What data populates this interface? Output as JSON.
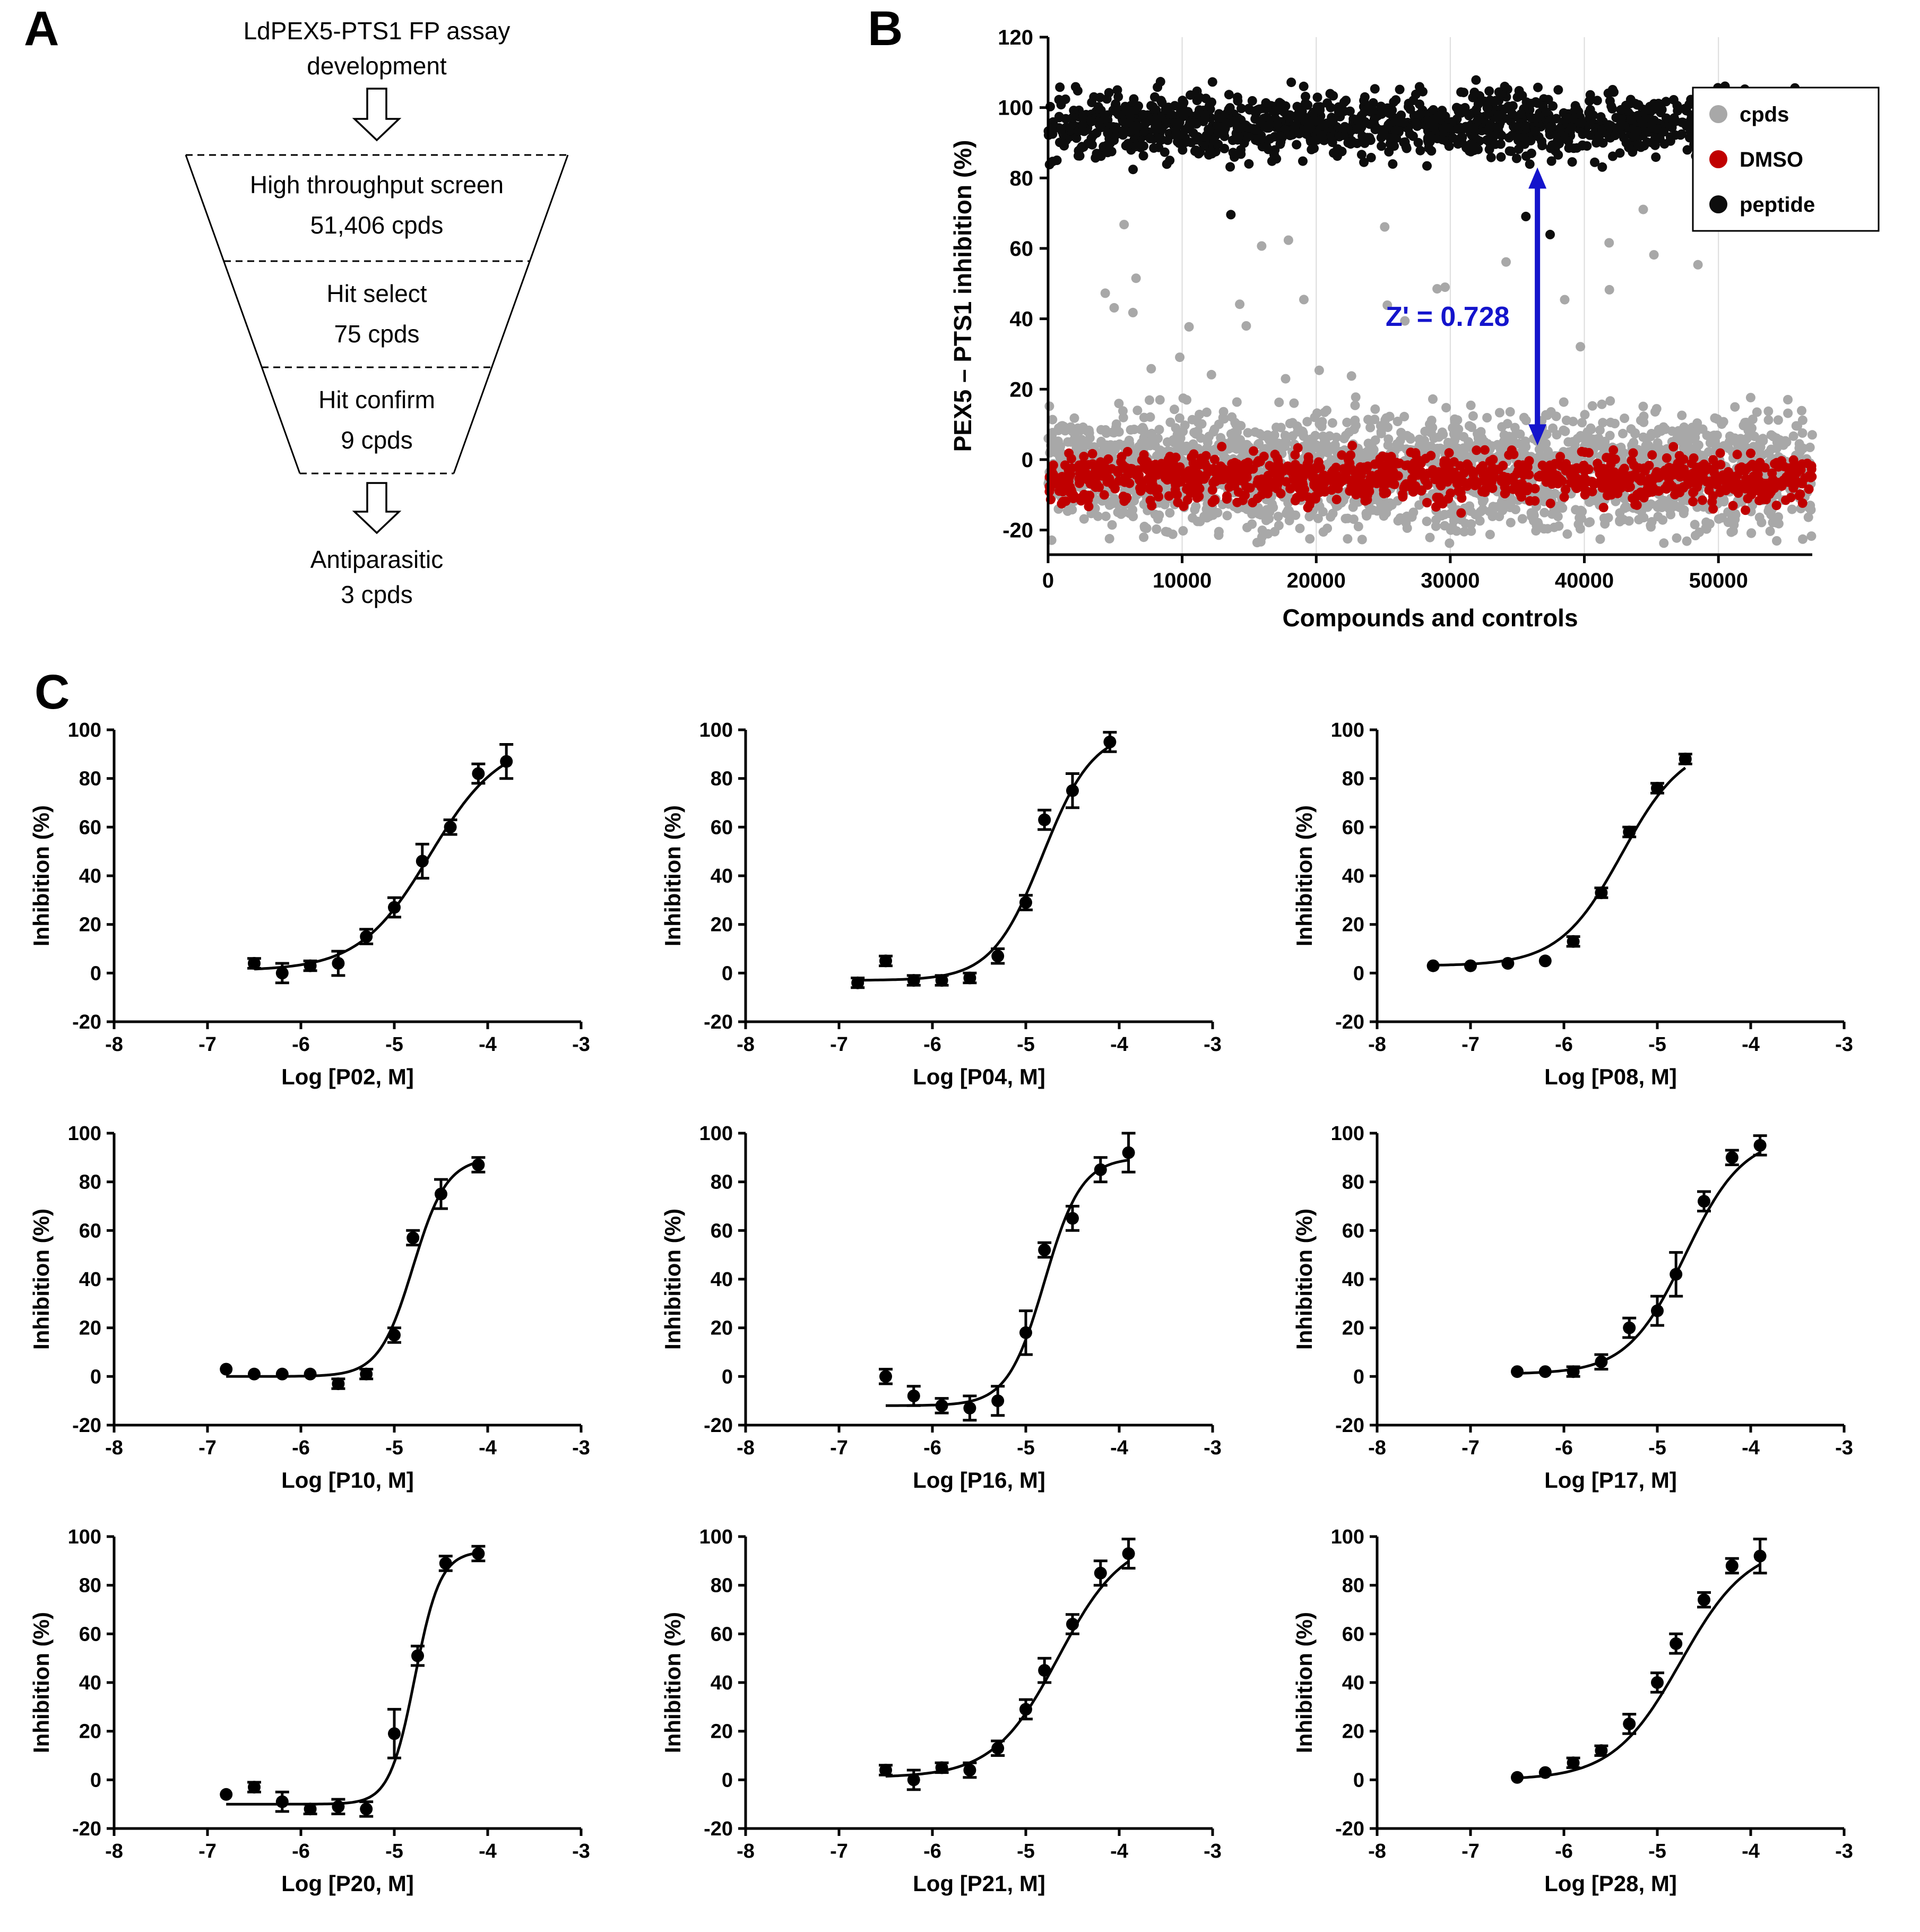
{
  "panelA": {
    "label": "A",
    "title_line1": "LdPEX5-PTS1 FP assay",
    "title_line2": "development",
    "funnel_stages": [
      {
        "line1": "High throughput screen",
        "line2": "51,406 cpds"
      },
      {
        "line1": "Hit select",
        "line2": "75 cpds"
      },
      {
        "line1": "Hit confirm",
        "line2": "9 cpds"
      }
    ],
    "outcome_line1": "Antiparasitic",
    "outcome_line2": "3 cpds"
  },
  "panelB": {
    "label": "B"
  },
  "panelC": {
    "label": "C"
  },
  "chart_data": [
    {
      "type": "scatter",
      "title": "",
      "xlabel": "Compounds and controls",
      "ylabel": "PEX5 – PTS1 inhibition (%)",
      "xlim": [
        0,
        57000
      ],
      "ylim": [
        -27,
        120
      ],
      "xticks": [
        0,
        10000,
        20000,
        30000,
        40000,
        50000
      ],
      "yticks": [
        -20,
        0,
        20,
        40,
        60,
        80,
        100,
        120
      ],
      "grid": "vertical-light",
      "legend_position": "top-right",
      "seed": 20,
      "series": [
        {
          "name": "cpds",
          "color": "#a8a8a8",
          "n": 2400,
          "y_mean": -3,
          "y_sd": 8,
          "y_min": -24,
          "y_max": 18,
          "outliers": {
            "n": 30,
            "y_min": 19,
            "y_max": 78
          }
        },
        {
          "name": "DMSO",
          "color": "#c00000",
          "n": 1000,
          "y_mean": -5,
          "y_sd": 3.5,
          "y_min": -16,
          "y_max": 4
        },
        {
          "name": "peptide",
          "color": "#0d0d0d",
          "n": 1400,
          "y_mean": 95,
          "y_sd": 4.5,
          "y_min": 82,
          "y_max": 108,
          "outliers": {
            "n": 3,
            "y_min": 58,
            "y_max": 78
          }
        }
      ],
      "legend": [
        {
          "name": "cpds",
          "color": "#a8a8a8"
        },
        {
          "name": "DMSO",
          "color": "#c00000"
        },
        {
          "name": "peptide",
          "color": "#0d0d0d"
        }
      ],
      "annotation": {
        "text": "Z' = 0.728",
        "color": "#1414cc",
        "x": 29800,
        "y": 38,
        "arrow_x": 36500,
        "arrow_y1": 4,
        "arrow_y2": 83
      }
    },
    {
      "type": "scatter-line",
      "name": "P02",
      "title": "",
      "xlabel": "Log [P02, M]",
      "ylabel": "Inhibition (%)",
      "xlim": [
        -8,
        -3
      ],
      "ylim": [
        -20,
        100
      ],
      "xticks": [
        -8,
        -7,
        -6,
        -5,
        -4,
        -3
      ],
      "yticks": [
        -20,
        0,
        20,
        40,
        60,
        80,
        100
      ],
      "points": {
        "x": [
          -6.5,
          -6.2,
          -5.9,
          -5.6,
          -5.3,
          -5.0,
          -4.7,
          -4.4,
          -4.1,
          -3.8
        ],
        "y": [
          4,
          0,
          3,
          4,
          15,
          27,
          46,
          60,
          82,
          87
        ],
        "err": [
          2,
          4,
          2,
          5,
          3,
          4,
          7,
          3,
          4,
          7
        ]
      },
      "fit": {
        "bottom": 1,
        "top": 96,
        "logec50": -4.62,
        "hill": 1.15
      }
    },
    {
      "type": "scatter-line",
      "name": "P04",
      "title": "",
      "xlabel": "Log [P04, M]",
      "ylabel": "Inhibition (%)",
      "xlim": [
        -8,
        -3
      ],
      "ylim": [
        -20,
        100
      ],
      "xticks": [
        -8,
        -7,
        -6,
        -5,
        -4,
        -3
      ],
      "yticks": [
        -20,
        0,
        20,
        40,
        60,
        80,
        100
      ],
      "points": {
        "x": [
          -6.8,
          -6.5,
          -6.2,
          -5.9,
          -5.6,
          -5.3,
          -5.0,
          -4.8,
          -4.5,
          -4.1
        ],
        "y": [
          -4,
          5,
          -3,
          -3,
          -2,
          7,
          29,
          63,
          75,
          95
        ],
        "err": [
          2,
          2,
          2,
          2,
          2,
          3,
          3,
          4,
          7,
          4
        ]
      },
      "fit": {
        "bottom": -3,
        "top": 100,
        "logec50": -4.82,
        "hill": 1.6
      }
    },
    {
      "type": "scatter-line",
      "name": "P08",
      "title": "",
      "xlabel": "Log [P08, M]",
      "ylabel": "Inhibition (%)",
      "xlim": [
        -8,
        -3
      ],
      "ylim": [
        -20,
        100
      ],
      "xticks": [
        -8,
        -7,
        -6,
        -5,
        -4,
        -3
      ],
      "yticks": [
        -20,
        0,
        20,
        40,
        60,
        80,
        100
      ],
      "points": {
        "x": [
          -7.4,
          -7.0,
          -6.6,
          -6.2,
          -5.9,
          -5.6,
          -5.3,
          -5.0,
          -4.7
        ],
        "y": [
          3,
          3,
          4,
          5,
          13,
          33,
          58,
          76,
          88
        ],
        "err": [
          1,
          1,
          1,
          1,
          2,
          2,
          2,
          2,
          2
        ]
      },
      "fit": {
        "bottom": 3,
        "top": 95,
        "logec50": -5.38,
        "hill": 1.3
      }
    },
    {
      "type": "scatter-line",
      "name": "P10",
      "title": "",
      "xlabel": "Log [P10, M]",
      "ylabel": "Inhibition (%)",
      "xlim": [
        -8,
        -3
      ],
      "ylim": [
        -20,
        100
      ],
      "xticks": [
        -8,
        -7,
        -6,
        -5,
        -4,
        -3
      ],
      "yticks": [
        -20,
        0,
        20,
        40,
        60,
        80,
        100
      ],
      "points": {
        "x": [
          -6.8,
          -6.5,
          -6.2,
          -5.9,
          -5.6,
          -5.3,
          -5.0,
          -4.8,
          -4.5,
          -4.1
        ],
        "y": [
          3,
          1,
          1,
          1,
          -3,
          1,
          17,
          57,
          75,
          87
        ],
        "err": [
          1,
          1,
          1,
          1,
          2,
          2,
          3,
          3,
          6,
          3
        ]
      },
      "fit": {
        "bottom": 0,
        "top": 90,
        "logec50": -4.8,
        "hill": 2.4
      }
    },
    {
      "type": "scatter-line",
      "name": "P16",
      "title": "",
      "xlabel": "Log [P16, M]",
      "ylabel": "Inhibition (%)",
      "xlim": [
        -8,
        -3
      ],
      "ylim": [
        -20,
        100
      ],
      "xticks": [
        -8,
        -7,
        -6,
        -5,
        -4,
        -3
      ],
      "yticks": [
        -20,
        0,
        20,
        40,
        60,
        80,
        100
      ],
      "points": {
        "x": [
          -6.5,
          -6.2,
          -5.9,
          -5.6,
          -5.3,
          -5.0,
          -4.8,
          -4.5,
          -4.2,
          -3.9
        ],
        "y": [
          0,
          -8,
          -12,
          -13,
          -10,
          18,
          52,
          65,
          85,
          92
        ],
        "err": [
          3,
          4,
          3,
          5,
          6,
          9,
          3,
          5,
          5,
          8
        ]
      },
      "fit": {
        "bottom": -12,
        "top": 90,
        "logec50": -4.8,
        "hill": 2.2
      }
    },
    {
      "type": "scatter-line",
      "name": "P17",
      "title": "",
      "xlabel": "Log [P17, M]",
      "ylabel": "Inhibition (%)",
      "xlim": [
        -8,
        -3
      ],
      "ylim": [
        -20,
        100
      ],
      "xticks": [
        -8,
        -7,
        -6,
        -5,
        -4,
        -3
      ],
      "yticks": [
        -20,
        0,
        20,
        40,
        60,
        80,
        100
      ],
      "points": {
        "x": [
          -6.5,
          -6.2,
          -5.9,
          -5.6,
          -5.3,
          -5.0,
          -4.8,
          -4.5,
          -4.2,
          -3.9
        ],
        "y": [
          2,
          2,
          2,
          6,
          20,
          27,
          42,
          72,
          90,
          95
        ],
        "err": [
          1,
          1,
          2,
          3,
          4,
          6,
          9,
          4,
          3,
          4
        ]
      },
      "fit": {
        "bottom": 1,
        "top": 99,
        "logec50": -4.7,
        "hill": 1.4
      }
    },
    {
      "type": "scatter-line",
      "name": "P20",
      "title": "",
      "xlabel": "Log [P20, M]",
      "ylabel": "Inhibition (%)",
      "xlim": [
        -8,
        -3
      ],
      "ylim": [
        -20,
        100
      ],
      "xticks": [
        -8,
        -7,
        -6,
        -5,
        -4,
        -3
      ],
      "yticks": [
        -20,
        0,
        20,
        40,
        60,
        80,
        100
      ],
      "points": {
        "x": [
          -6.8,
          -6.5,
          -6.2,
          -5.9,
          -5.6,
          -5.3,
          -5.0,
          -4.75,
          -4.45,
          -4.1
        ],
        "y": [
          -6,
          -3,
          -9,
          -12,
          -11,
          -12,
          19,
          51,
          89,
          93
        ],
        "err": [
          1,
          2,
          4,
          2,
          3,
          3,
          10,
          4,
          3,
          3
        ]
      },
      "fit": {
        "bottom": -10,
        "top": 94,
        "logec50": -4.78,
        "hill": 3.2
      }
    },
    {
      "type": "scatter-line",
      "name": "P21",
      "title": "",
      "xlabel": "Log [P21, M]",
      "ylabel": "Inhibition (%)",
      "xlim": [
        -8,
        -3
      ],
      "ylim": [
        -20,
        100
      ],
      "xticks": [
        -8,
        -7,
        -6,
        -5,
        -4,
        -3
      ],
      "yticks": [
        -20,
        0,
        20,
        40,
        60,
        80,
        100
      ],
      "points": {
        "x": [
          -6.5,
          -6.2,
          -5.9,
          -5.6,
          -5.3,
          -5.0,
          -4.8,
          -4.5,
          -4.2,
          -3.9
        ],
        "y": [
          4,
          0,
          5,
          4,
          13,
          29,
          45,
          64,
          85,
          93
        ],
        "err": [
          2,
          4,
          2,
          3,
          3,
          4,
          5,
          4,
          5,
          6
        ]
      },
      "fit": {
        "bottom": 1,
        "top": 100,
        "logec50": -4.65,
        "hill": 1.25
      }
    },
    {
      "type": "scatter-line",
      "name": "P28",
      "title": "",
      "xlabel": "Log [P28, M]",
      "ylabel": "Inhibition (%)",
      "xlim": [
        -8,
        -3
      ],
      "ylim": [
        -20,
        100
      ],
      "xticks": [
        -8,
        -7,
        -6,
        -5,
        -4,
        -3
      ],
      "yticks": [
        -20,
        0,
        20,
        40,
        60,
        80,
        100
      ],
      "points": {
        "x": [
          -6.5,
          -6.2,
          -5.9,
          -5.6,
          -5.3,
          -5.0,
          -4.8,
          -4.5,
          -4.2,
          -3.9
        ],
        "y": [
          1,
          3,
          7,
          12,
          23,
          40,
          56,
          74,
          88,
          92
        ],
        "err": [
          1,
          1,
          2,
          2,
          4,
          4,
          4,
          3,
          3,
          7
        ]
      },
      "fit": {
        "bottom": 0,
        "top": 97,
        "logec50": -4.75,
        "hill": 1.2
      }
    }
  ]
}
